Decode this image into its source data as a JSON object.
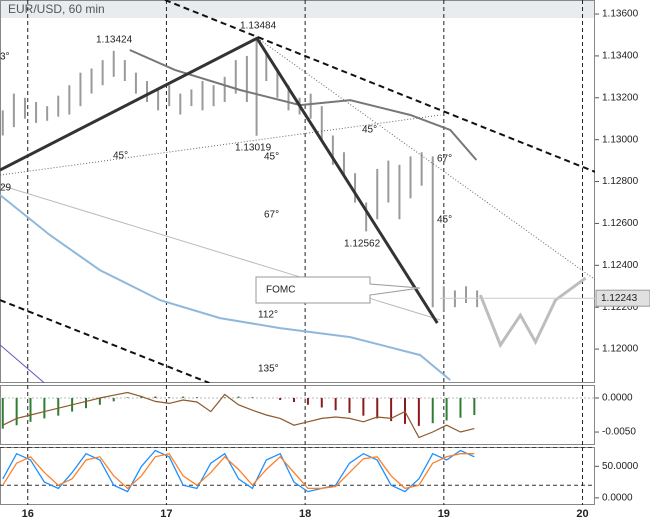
{
  "chart_data": [
    {
      "type": "ohlc",
      "title": "EUR/USD, 60 min",
      "xlim": [
        15.8,
        20.09
      ],
      "xticks": [
        16,
        17,
        18,
        19,
        20
      ],
      "ylim": [
        1.11838,
        1.13667
      ],
      "yticks": [
        {
          "value": 1.136,
          "label": "1.13600"
        },
        {
          "value": 1.134,
          "label": "1.13400"
        },
        {
          "value": 1.132,
          "label": "1.13200"
        },
        {
          "value": 1.13,
          "label": "1.13000"
        },
        {
          "value": 1.128,
          "label": "1.12800"
        },
        {
          "value": 1.126,
          "label": "1.12600"
        },
        {
          "value": 1.124,
          "label": "1.12400"
        },
        {
          "value": 1.122,
          "label": "1.12200"
        },
        {
          "value": 1.12,
          "label": "1.12000"
        }
      ],
      "color": "#9a9a9a",
      "x": [
        15.82,
        15.9,
        15.98,
        16.06,
        16.14,
        16.22,
        16.3,
        16.38,
        16.46,
        16.54,
        16.62,
        16.7,
        16.78,
        16.86,
        16.94,
        17.02,
        17.1,
        17.18,
        17.26,
        17.34,
        17.42,
        17.5,
        17.58,
        17.65,
        17.72,
        17.8,
        17.88,
        17.96,
        18.04,
        18.12,
        18.2,
        18.28,
        18.36,
        18.44,
        18.52,
        18.6,
        18.68,
        18.76,
        18.84,
        18.92,
        19.0,
        19.08,
        19.16,
        19.24
      ],
      "low": [
        1.1302,
        1.1306,
        1.131,
        1.1308,
        1.1309,
        1.1311,
        1.1312,
        1.1316,
        1.1322,
        1.1326,
        1.133,
        1.1328,
        1.1322,
        1.1318,
        1.1314,
        1.1316,
        1.1312,
        1.1316,
        1.1314,
        1.1316,
        1.1318,
        1.1322,
        1.1318,
        1.13019,
        1.1328,
        1.132,
        1.1314,
        1.1312,
        1.131,
        1.13,
        1.1288,
        1.1282,
        1.127,
        1.12562,
        1.1262,
        1.127,
        1.1262,
        1.1272,
        1.1278,
        1.122,
        1.1218,
        1.122,
        1.1222,
        1.122
      ],
      "high": [
        1.1314,
        1.1322,
        1.132,
        1.1318,
        1.1316,
        1.1321,
        1.1326,
        1.1332,
        1.1334,
        1.1338,
        1.13424,
        1.1338,
        1.1332,
        1.1328,
        1.1324,
        1.1326,
        1.1322,
        1.1324,
        1.1328,
        1.1326,
        1.133,
        1.1338,
        1.134,
        1.13484,
        1.1342,
        1.1334,
        1.1326,
        1.132,
        1.1322,
        1.1316,
        1.1302,
        1.1294,
        1.1284,
        1.127,
        1.1286,
        1.129,
        1.1288,
        1.1292,
        1.1294,
        1.1292,
        1.123,
        1.1228,
        1.123,
        1.1228
      ],
      "lines": [
        {
          "style": "ma-blue",
          "x": [
            15.8,
            16.159,
            16.52,
            16.953,
            17.386,
            17.819,
            18.325,
            18.83,
            19.047
          ],
          "y": [
            1.12736,
            1.12545,
            1.12377,
            1.12234,
            1.12148,
            1.121,
            1.12057,
            1.11971,
            1.11852
          ]
        },
        {
          "style": "ma",
          "x": [
            16.736,
            17.061,
            17.531,
            17.964,
            18.325,
            18.758,
            19.047,
            19.235
          ],
          "y": [
            1.13428,
            1.13333,
            1.13237,
            1.13165,
            1.13189,
            1.13118,
            1.13046,
            1.12903
          ]
        },
        {
          "style": "purple",
          "x": [
            15.8,
            16.12
          ],
          "y": [
            1.1202,
            1.11838
          ]
        },
        {
          "style": "thin",
          "x": [
            15.8,
            18.975
          ],
          "y": [
            1.12783,
            1.12139
          ]
        },
        {
          "style": "dotted",
          "x": [
            15.8,
            18.975
          ],
          "y": [
            1.12831,
            1.13118
          ]
        },
        {
          "style": "dotted",
          "x": [
            17.675,
            20.094
          ],
          "y": [
            1.13476,
            1.1233
          ]
        },
        {
          "style": "channel",
          "x": [
            16.99,
            20.094
          ],
          "y": [
            1.13667,
            1.12845
          ]
        },
        {
          "style": "channel",
          "x": [
            15.8,
            17.31
          ],
          "y": [
            1.12234,
            1.11838
          ]
        },
        {
          "style": "trend",
          "x": [
            15.8,
            17.653,
            18.953
          ],
          "y": [
            1.12855,
            1.13484,
            1.12124
          ]
        },
        {
          "style": "projection",
          "x": [
            19.264,
            19.408,
            19.552,
            19.661,
            19.805,
            20.022
          ],
          "y": [
            1.12258,
            1.12019,
            1.12162,
            1.12034,
            1.12234,
            1.12339
          ]
        }
      ],
      "last_price": 1.12243,
      "annotations": [
        "1.13424",
        "1.13484",
        "1.13019",
        "1.12562",
        "45°",
        "45°",
        "45°",
        "45°",
        "67°",
        "67°",
        "112°",
        "135°",
        "29",
        "3°",
        "FOMC"
      ]
    },
    {
      "type": "histogram",
      "xlim": [
        15.8,
        20.09
      ],
      "xticks": [
        16,
        17,
        18,
        19,
        20
      ],
      "ylim": [
        -0.0069,
        0.0019
      ],
      "yticks": [
        {
          "value": 0,
          "label": "0.0000"
        },
        {
          "value": -0.005,
          "label": "-0.0050"
        }
      ],
      "up_color": "#2e7d32",
      "down_color": "#8b1a1a",
      "x": [
        15.82,
        15.92,
        16.02,
        16.12,
        16.22,
        16.32,
        16.42,
        16.52,
        16.62,
        16.72,
        16.82,
        16.92,
        17.02,
        17.12,
        17.22,
        17.32,
        17.42,
        17.52,
        17.62,
        17.72,
        17.82,
        17.92,
        18.02,
        18.12,
        18.22,
        18.32,
        18.42,
        18.52,
        18.62,
        18.72,
        18.82,
        18.92,
        19.02,
        19.12,
        19.22
      ],
      "values": [
        -0.0045,
        -0.004,
        -0.0035,
        -0.003,
        -0.0026,
        -0.002,
        -0.0015,
        -0.001,
        -0.0005,
        0.0001,
        0.0003,
        0.0002,
        0.0001,
        0.0002,
        0.0001,
        0.0,
        0.0001,
        0.0002,
        0.0001,
        0.0,
        -0.0003,
        -0.0006,
        -0.001,
        -0.0014,
        -0.0018,
        -0.0022,
        -0.0026,
        -0.003,
        -0.0034,
        -0.0038,
        -0.0041,
        -0.0037,
        -0.0033,
        -0.0029,
        -0.0025
      ],
      "line": {
        "color": "#8b5a2b",
        "values": [
          -0.004,
          -0.003,
          -0.0025,
          -0.002,
          -0.0015,
          -0.001,
          -0.0005,
          0.0,
          0.0004,
          0.0008,
          0.0002,
          -0.0005,
          -0.0008,
          -0.0003,
          -0.0006,
          -0.002,
          0.0005,
          -0.001,
          -0.0018,
          -0.0025,
          -0.003,
          -0.004,
          -0.0035,
          -0.003,
          -0.0028,
          -0.003,
          -0.0035,
          -0.0028,
          -0.003,
          -0.002,
          -0.0058,
          -0.005,
          -0.004,
          -0.005,
          -0.0045
        ]
      }
    },
    {
      "type": "line",
      "xlim": [
        15.8,
        20.09
      ],
      "xticks": [
        16,
        17,
        18,
        19,
        20
      ],
      "ylim": [
        -11.3,
        80.6
      ],
      "yticks": [
        {
          "value": 50,
          "label": "50.0000"
        },
        {
          "value": 0,
          "label": "0.0000"
        }
      ],
      "levels": [
        80,
        20
      ],
      "x": [
        15.82,
        15.92,
        16.02,
        16.12,
        16.22,
        16.32,
        16.42,
        16.52,
        16.62,
        16.72,
        16.82,
        16.92,
        17.02,
        17.12,
        17.22,
        17.32,
        17.42,
        17.52,
        17.62,
        17.72,
        17.82,
        17.92,
        18.02,
        18.12,
        18.22,
        18.32,
        18.42,
        18.52,
        18.62,
        18.72,
        18.82,
        18.92,
        19.02,
        19.12,
        19.22
      ],
      "series": [
        {
          "color": "#1e90ff",
          "values": [
            30,
            70,
            60,
            25,
            15,
            40,
            70,
            60,
            20,
            10,
            50,
            75,
            65,
            20,
            15,
            55,
            70,
            30,
            15,
            60,
            70,
            25,
            10,
            15,
            20,
            55,
            70,
            60,
            20,
            10,
            30,
            70,
            60,
            75,
            65
          ]
        },
        {
          "color": "#ff7f27",
          "values": [
            20,
            55,
            65,
            40,
            20,
            30,
            60,
            65,
            35,
            15,
            35,
            65,
            70,
            35,
            20,
            40,
            65,
            45,
            20,
            45,
            65,
            40,
            15,
            15,
            18,
            40,
            62,
            65,
            35,
            15,
            20,
            55,
            65,
            70,
            70
          ]
        }
      ]
    }
  ]
}
